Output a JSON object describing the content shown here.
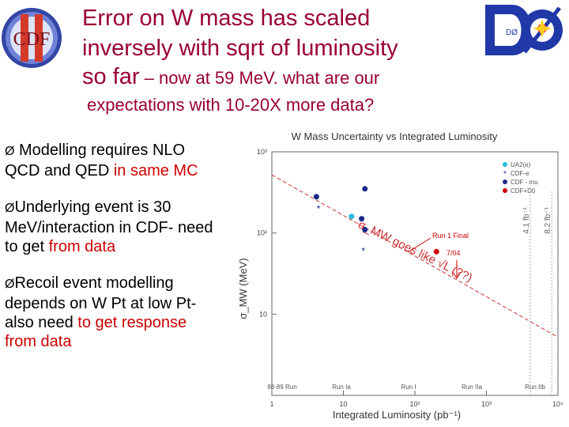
{
  "slide": {
    "title_line1": "Error on W mass has  scaled",
    "title_line2": "inversely with sqrt of luminosity",
    "title_line3_a": "so far",
    "title_line3_b": " – now at 59 Me",
    "title_line3_c": "V. what are our",
    "title_line4": "expectations with 10-20X more data?"
  },
  "logos": {
    "cdf_text": "CDF",
    "d0_text": "DØ"
  },
  "bullets": [
    {
      "marker": "Ø",
      "text_a": " Modelling requires NLO QCD and QED",
      "text_red": " in same MC"
    },
    {
      "marker": "Ø",
      "text_a": "Underlying event is 30 MeV/interaction in CDF- need to get",
      "text_red": " from data"
    },
    {
      "marker": "Ø",
      "text_a": "Recoil event modelling depends on W Pt at low Pt- also need",
      "text_red": " to get response from data",
      "text_tail": ""
    }
  ],
  "chart_data": {
    "type": "scatter",
    "title": "W Mass Uncertainty vs Integrated Luminosity",
    "xlabel": "Integrated Luminosity (pb⁻¹)",
    "ylabel": "σ_MW (MeV)",
    "xscale": "log",
    "yscale": "log",
    "xlim": [
      1,
      10000
    ],
    "ylim": [
      1,
      1000
    ],
    "x_ticks": [
      "1",
      "10",
      "10²",
      "10³",
      "10⁴"
    ],
    "y_ticks": [
      "10",
      "10²",
      "10³"
    ],
    "legend": [
      "UA2(e)",
      "CDF-e",
      "CDF - mu",
      "CDF+D0"
    ],
    "series": [
      {
        "name": "UA2(e)",
        "color": "#22bbdd",
        "points": [
          [
            13,
            160
          ]
        ]
      },
      {
        "name": "CDF-e",
        "color": "#1a2a8a",
        "marker": "star",
        "points": [
          [
            4.5,
            200
          ],
          [
            19,
            60
          ]
        ]
      },
      {
        "name": "CDF - mu",
        "color": "#1a2a8a",
        "points": [
          [
            4.2,
            280
          ],
          [
            18,
            150
          ],
          [
            20,
            350
          ],
          [
            20,
            110
          ]
        ]
      },
      {
        "name": "CDF+D0",
        "color": "#cc0000",
        "points": [
          [
            200,
            59
          ]
        ]
      }
    ],
    "fit_line": {
      "x": [
        1,
        10000
      ],
      "y": [
        520,
        5.2
      ]
    },
    "vlines": [
      {
        "x": 4100,
        "label": "4.1 fb⁻¹"
      },
      {
        "x": 8200,
        "label": "8.2 fb⁻¹"
      }
    ],
    "annotations": {
      "run1_final": "Run 1 Final",
      "date": "7/04",
      "slope_text": "σ_MW goes like √L (??)",
      "runs": [
        "88-89 Run",
        "Run Ia",
        "Run I",
        "Run IIa",
        "Run IIb"
      ]
    }
  }
}
